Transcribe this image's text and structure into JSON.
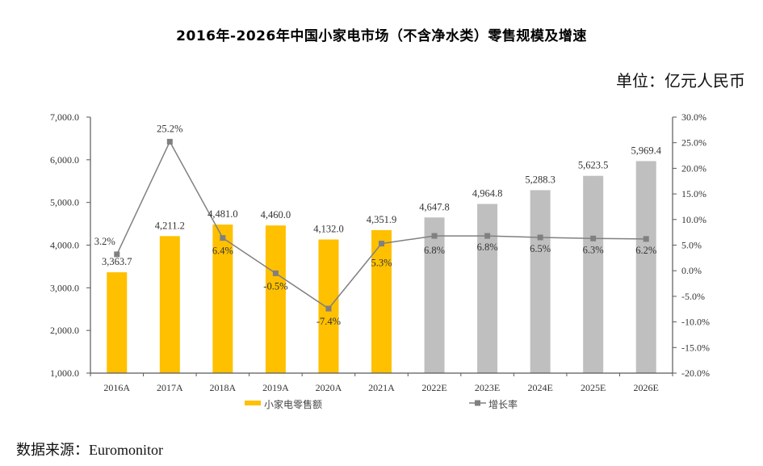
{
  "header": {
    "title": "2016年-2026年中国小家电市场（不含净水类）零售规模及增速",
    "unit": "单位：亿元人民币"
  },
  "footer": {
    "source": "数据来源：Euromonitor"
  },
  "colors": {
    "actual_bar": "#FFC000",
    "estimate_bar": "#BFBFBF",
    "growth_line": "#808080",
    "axis": "#595959"
  },
  "chart_data": {
    "type": "bar",
    "title": "2016年-2026年中国小家电市场（不含净水类）零售规模及增速",
    "categories": [
      "2016A",
      "2017A",
      "2018A",
      "2019A",
      "2020A",
      "2021A",
      "2022E",
      "2023E",
      "2024E",
      "2025E",
      "2026E"
    ],
    "series": [
      {
        "name": "小家电零售额",
        "type": "bar",
        "axis": "left",
        "values": [
          3363.7,
          4211.2,
          4481.0,
          4460.0,
          4132.0,
          4351.9,
          4647.8,
          4964.8,
          5288.3,
          5623.5,
          5969.4
        ],
        "labels": [
          "3,363.7",
          "4,211.2",
          "4,481.0",
          "4,460.0",
          "4,132.0",
          "4,351.9",
          "4,647.8",
          "4,964.8",
          "5,288.3",
          "5,623.5",
          "5,969.4"
        ],
        "estimate_from_index": 6
      },
      {
        "name": "增长率",
        "type": "line",
        "axis": "right",
        "values": [
          3.2,
          25.2,
          6.4,
          -0.5,
          -7.4,
          5.3,
          6.8,
          6.8,
          6.5,
          6.3,
          6.2
        ],
        "labels": [
          "3.2%",
          "25.2%",
          "6.4%",
          "-0.5%",
          "-7.4%",
          "5.3%",
          "6.8%",
          "6.8%",
          "6.5%",
          "6.3%",
          "6.2%"
        ]
      }
    ],
    "y_left": {
      "range": [
        1000,
        7000
      ],
      "ticks": [
        1000,
        2000,
        3000,
        4000,
        5000,
        6000,
        7000
      ],
      "tick_labels": [
        "1,000.0",
        "2,000.0",
        "3,000.0",
        "4,000.0",
        "5,000.0",
        "6,000.0",
        "7,000.0"
      ]
    },
    "y_right": {
      "range": [
        -20,
        30
      ],
      "ticks": [
        -20,
        -15,
        -10,
        -5,
        0,
        5,
        10,
        15,
        20,
        25,
        30
      ],
      "tick_labels": [
        "-20.0%",
        "-15.0%",
        "-10.0%",
        "-5.0%",
        "0.0%",
        "5.0%",
        "10.0%",
        "15.0%",
        "20.0%",
        "25.0%",
        "30.0%"
      ]
    },
    "xlabel": "",
    "ylabel": "",
    "grid": false,
    "legend": {
      "position": "bottom",
      "entries": [
        "小家电零售额",
        "增长率"
      ]
    }
  }
}
